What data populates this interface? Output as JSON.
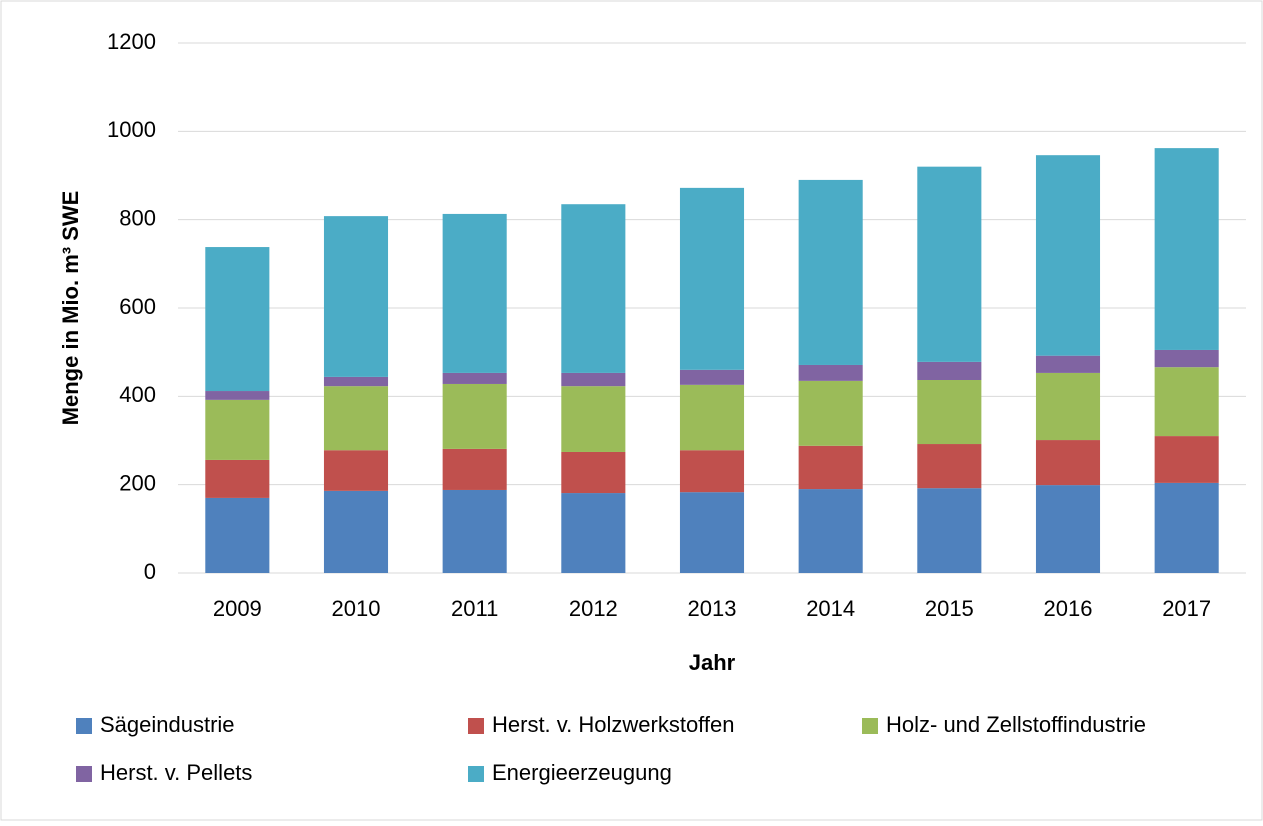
{
  "chart_data": {
    "type": "stacked_bar",
    "x_label": "Jahr",
    "y_label": "Menge in Mio. m³ SWE",
    "categories": [
      "2009",
      "2010",
      "2011",
      "2012",
      "2013",
      "2014",
      "2015",
      "2016",
      "2017"
    ],
    "series": [
      {
        "name": "Sägeindustrie",
        "color": "#4f81bd",
        "values": [
          170,
          186,
          188,
          181,
          183,
          190,
          192,
          199,
          204
        ]
      },
      {
        "name": "Herst. v. Holzwerkstoffen",
        "color": "#c0504d",
        "values": [
          86,
          92,
          93,
          93,
          95,
          98,
          100,
          102,
          106
        ]
      },
      {
        "name": "Holz- und Zellstoffindustrie",
        "color": "#9bbb59",
        "values": [
          136,
          145,
          147,
          149,
          148,
          147,
          145,
          152,
          156
        ]
      },
      {
        "name": "Herst. v. Pellets",
        "color": "#8064a2",
        "values": [
          20,
          21,
          25,
          30,
          34,
          36,
          41,
          39,
          39
        ]
      },
      {
        "name": "Energieerzeugung",
        "color": "#4bacc6",
        "values": [
          326,
          364,
          360,
          382,
          412,
          419,
          442,
          454,
          457
        ]
      }
    ],
    "ylim": [
      0,
      1200
    ],
    "yticks": [
      0,
      200,
      400,
      600,
      800,
      1000,
      1200
    ],
    "grid": true
  }
}
